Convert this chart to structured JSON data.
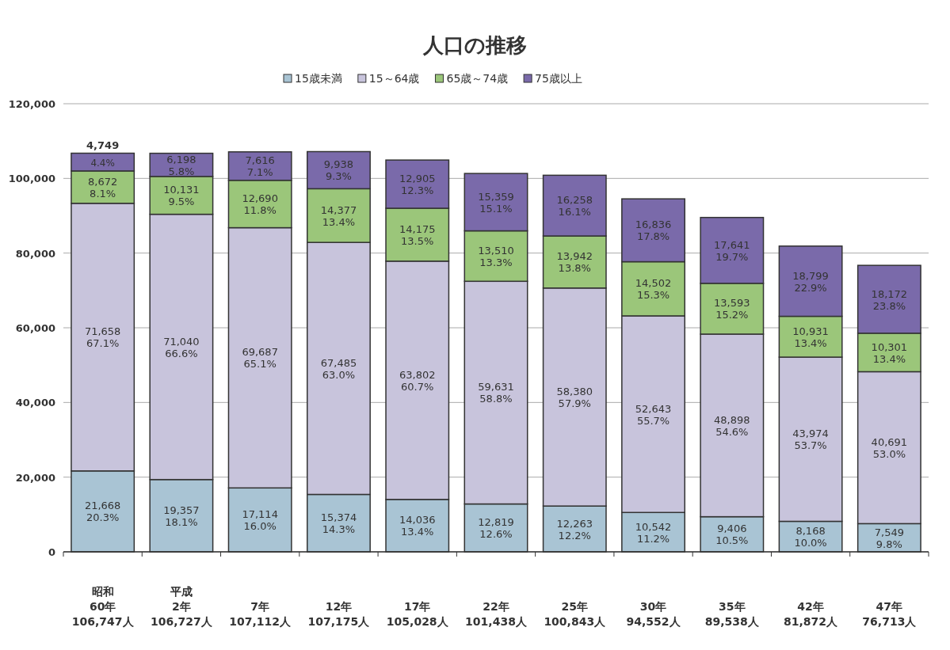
{
  "chart_data": {
    "type": "bar",
    "stacked": true,
    "title": "人口の推移",
    "categories": [
      "昭和\n60年\n106,747人",
      "平成\n2年\n106,727人",
      "7年\n107,112人",
      "12年\n107,175人",
      "17年\n105,028人",
      "22年\n101,438人",
      "25年\n100,843人",
      "30年\n94,552人",
      "35年\n89,538人",
      "42年\n81,872人",
      "47年\n76,713人"
    ],
    "series": [
      {
        "name": "15歳未満",
        "color": "#a9c4d4",
        "values": [
          21668,
          19357,
          17114,
          15374,
          14036,
          12819,
          12263,
          10542,
          9406,
          8168,
          7549
        ],
        "value_labels": [
          "21,668\n20.3%",
          "19,357\n18.1%",
          "17,114\n16.0%",
          "15,374\n14.3%",
          "14,036\n13.4%",
          "12,819\n12.6%",
          "12,263\n12.2%",
          "10,542\n11.2%",
          "9,406\n10.5%",
          "8,168\n10.0%",
          "7,549\n9.8%"
        ]
      },
      {
        "name": "15～64歳",
        "color": "#c8c4dc",
        "values": [
          71658,
          71040,
          69687,
          67485,
          63802,
          59631,
          58380,
          52643,
          48898,
          43974,
          40691
        ],
        "value_labels": [
          "71,658\n67.1%",
          "71,040\n66.6%",
          "69,687\n65.1%",
          "67,485\n63.0%",
          "63,802\n60.7%",
          "59,631\n58.8%",
          "58,380\n57.9%",
          "52,643\n55.7%",
          "48,898\n54.6%",
          "43,974\n53.7%",
          "40,691\n53.0%"
        ]
      },
      {
        "name": "65歳～74歳",
        "color": "#9bc67a",
        "values": [
          8672,
          10131,
          12690,
          14377,
          14175,
          13510,
          13942,
          14502,
          13593,
          10931,
          10301
        ],
        "value_labels": [
          "8,672\n8.1%",
          "10,131\n9.5%",
          "12,690\n11.8%",
          "14,377\n13.4%",
          "14,175\n13.5%",
          "13,510\n13.3%",
          "13,942\n13.8%",
          "14,502\n15.3%",
          "13,593\n15.2%",
          "10,931\n13.4%",
          "10,301\n13.4%"
        ]
      },
      {
        "name": "75歳以上",
        "color": "#7a6aaa",
        "values": [
          4749,
          6198,
          7616,
          9938,
          12905,
          15359,
          16258,
          16836,
          17641,
          18799,
          18172
        ],
        "value_labels": [
          "4,749\n4.4%",
          "6,198\n5.8%",
          "7,616\n7.1%",
          "9,938\n9.3%",
          "12,905\n12.3%",
          "15,359\n15.1%",
          "16,258\n16.1%",
          "16,836\n17.8%",
          "17,641\n19.7%",
          "18,799\n22.9%",
          "18,172\n23.8%"
        ]
      }
    ],
    "ylim": [
      0,
      120000
    ],
    "yticks": [
      0,
      {
        "value": 20000,
        "label": "20,000"
      },
      {
        "value": 40000,
        "label": "40,000"
      },
      {
        "value": 60000,
        "label": "60,000"
      },
      {
        "value": 80000,
        "label": "80,000"
      },
      {
        "value": 100000,
        "label": "100,000"
      },
      {
        "value": 120000,
        "label": "120,000"
      }
    ],
    "grid": "y",
    "legend": "top"
  }
}
